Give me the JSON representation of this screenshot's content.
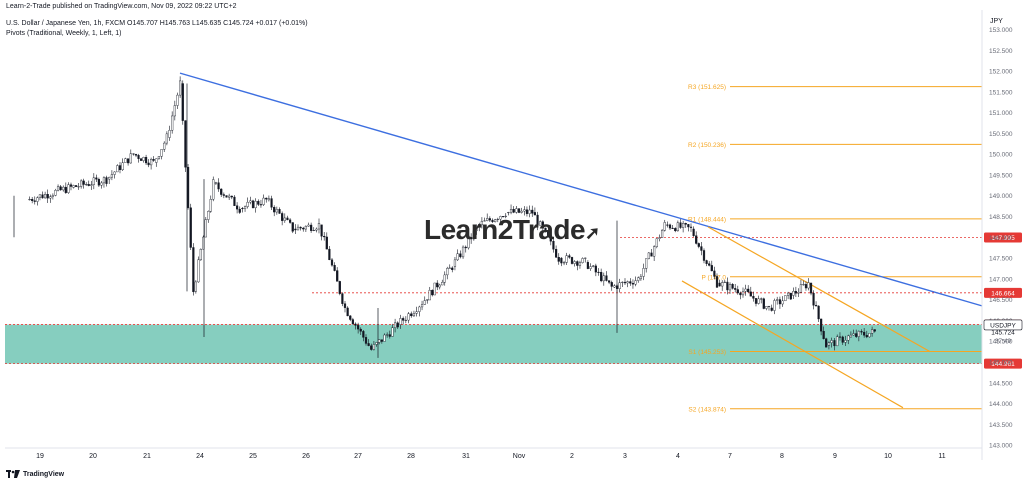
{
  "header": {
    "publisher": "Learn-2-Trade published on TradingView.com, Nov 09, 2022 09:22 UTC+2",
    "symbol_line": "U.S. Dollar / Japanese Yen, 1h, FXCM",
    "ohlc": "O145.707 H145.763 L145.635 C145.724 +0.017 (+0.01%)",
    "indicator": "Pivots (Traditional, Weekly, 1, Left, 1)"
  },
  "watermark": "Learn2Trade",
  "footer": {
    "brand": "TradingView"
  },
  "chart_data": {
    "type": "candlestick",
    "instrument": "USDJPY",
    "currency": "JPY",
    "timeframe": "1h",
    "ylim": [
      142.9,
      153.1
    ],
    "y_ticks": [
      143.0,
      143.5,
      144.0,
      144.5,
      145.0,
      145.5,
      146.0,
      146.5,
      147.0,
      147.5,
      148.0,
      148.5,
      149.0,
      149.5,
      150.0,
      150.5,
      151.0,
      151.5,
      152.0,
      152.5,
      153.0
    ],
    "x_ticks": [
      "19",
      "20",
      "21",
      "24",
      "25",
      "26",
      "27",
      "28",
      "31",
      "Nov",
      "2",
      "3",
      "4",
      "7",
      "8",
      "9",
      "10",
      "11"
    ],
    "close_path": [
      [
        "19",
        148.9
      ],
      [
        "19",
        149.2
      ],
      [
        "20",
        149.4
      ],
      [
        "20",
        150.0
      ],
      [
        "21",
        149.8
      ],
      [
        "21",
        150.4
      ],
      [
        "21",
        151.7
      ],
      [
        "21",
        146.7
      ],
      [
        "24",
        149.3
      ],
      [
        "24",
        148.7
      ],
      [
        "25",
        148.9
      ],
      [
        "25",
        148.2
      ],
      [
        "26",
        148.3
      ],
      [
        "26",
        146.3
      ],
      [
        "27",
        145.3
      ],
      [
        "27",
        145.9
      ],
      [
        "28",
        146.5
      ],
      [
        "28",
        147.3
      ],
      [
        "31",
        148.3
      ],
      [
        "31",
        148.6
      ],
      [
        "Nov",
        148.6
      ],
      [
        "Nov",
        147.5
      ],
      [
        "2",
        147.4
      ],
      [
        "2",
        146.8
      ],
      [
        "3",
        147.0
      ],
      [
        "3",
        148.3
      ],
      [
        "4",
        148.2
      ],
      [
        "4",
        146.9
      ],
      [
        "7",
        146.7
      ],
      [
        "7",
        146.3
      ],
      [
        "8",
        146.6
      ],
      [
        "8",
        146.9
      ],
      [
        "8",
        145.4
      ],
      [
        "9",
        145.6
      ],
      [
        "9",
        145.72
      ]
    ],
    "current_price": 145.724,
    "countdown": "37:49",
    "pivots": [
      {
        "label": "R3 (151.625)",
        "value": 151.625
      },
      {
        "label": "R2 (150.236)",
        "value": 150.236
      },
      {
        "label": "R1 (148.444)",
        "value": 148.444
      },
      {
        "label": "P (147.0",
        "value": 147.05
      },
      {
        "label": "S1 (145.253)",
        "value": 145.253
      },
      {
        "label": "S2 (143.874)",
        "value": 143.874
      }
    ],
    "price_levels": [
      {
        "value": 147.995,
        "label": "147.995",
        "color": "#e53935"
      },
      {
        "value": 146.664,
        "label": "146.664",
        "color": "#e53935"
      },
      {
        "value": 145.9,
        "label": "145.900",
        "color": "#e53935"
      },
      {
        "value": 144.961,
        "label": "144.961",
        "color": "#e53935"
      }
    ],
    "support_zone": [
      144.961,
      145.9
    ],
    "last_label": "USDJPY",
    "colors": {
      "trendline": "#3d6fe0",
      "channel": "#f5a623",
      "pivot": "#f5a623",
      "zone": "#80cbbc",
      "level": "#e53935",
      "candle": "#131722"
    }
  }
}
